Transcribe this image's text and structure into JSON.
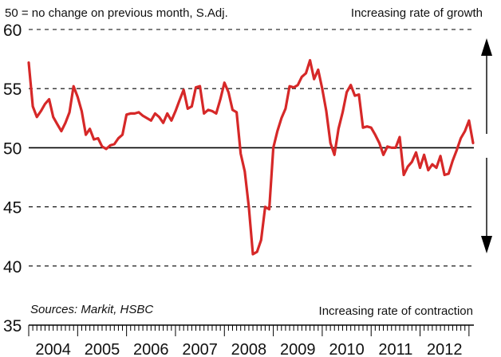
{
  "chart_data": {
    "type": "line",
    "note": "50 = no change on previous month, S.Adj.",
    "top_label": "Increasing rate of growth",
    "bottom_label": "Increasing rate of contraction",
    "sources": "Sources: Markit, HSBC",
    "ylim": [
      35,
      60
    ],
    "yticks": [
      "35",
      "40",
      "45",
      "50",
      "55",
      "60"
    ],
    "year_labels": [
      "2004",
      "2005",
      "2006",
      "2007",
      "2008",
      "2009",
      "2010",
      "2011",
      "2012"
    ],
    "reference_line": 50,
    "grid": "dashed horizontal",
    "colors": {
      "series": "#d62828",
      "axis": "#000000",
      "grid": "#000000"
    },
    "series": [
      {
        "x": [
          2004.0,
          2004.083,
          2004.167,
          2004.25,
          2004.333,
          2004.417,
          2004.5,
          2004.583,
          2004.667,
          2004.75,
          2004.833,
          2004.917,
          2005.0,
          2005.083,
          2005.167,
          2005.25,
          2005.333,
          2005.417,
          2005.5,
          2005.583,
          2005.667,
          2005.75,
          2005.833,
          2005.917,
          2006.0,
          2006.083,
          2006.167,
          2006.25,
          2006.333,
          2006.417,
          2006.5,
          2006.583,
          2006.667,
          2006.75,
          2006.833,
          2006.917,
          2007.0,
          2007.083,
          2007.167,
          2007.25,
          2007.333,
          2007.417,
          2007.5,
          2007.583,
          2007.667,
          2007.75,
          2007.833,
          2007.917,
          2008.0,
          2008.083,
          2008.167,
          2008.25,
          2008.333,
          2008.417,
          2008.5,
          2008.583,
          2008.667,
          2008.75,
          2008.833,
          2008.917,
          2009.0,
          2009.083,
          2009.167,
          2009.25,
          2009.333,
          2009.417,
          2009.5,
          2009.583,
          2009.667,
          2009.75,
          2009.833,
          2009.917,
          2010.0,
          2010.083,
          2010.167,
          2010.25,
          2010.333,
          2010.417,
          2010.5,
          2010.583,
          2010.667,
          2010.75,
          2010.833,
          2010.917,
          2011.0,
          2011.083,
          2011.167,
          2011.25,
          2011.333,
          2011.417,
          2011.5,
          2011.583,
          2011.667,
          2011.75,
          2011.833,
          2011.917,
          2012.0,
          2012.083,
          2012.167,
          2012.25,
          2012.333,
          2012.417,
          2012.5,
          2012.583,
          2012.667,
          2012.75,
          2012.833,
          2012.917,
          2013.0,
          2013.083
        ],
        "y": [
          57.2,
          53.5,
          52.6,
          53.1,
          53.7,
          54.1,
          52.6,
          52.0,
          51.4,
          52.1,
          53.0,
          55.2,
          54.3,
          53.1,
          51.1,
          51.6,
          50.7,
          50.8,
          50.1,
          49.9,
          50.2,
          50.3,
          50.8,
          51.1,
          52.8,
          52.9,
          52.9,
          53.0,
          52.7,
          52.5,
          52.3,
          52.9,
          52.6,
          52.1,
          52.9,
          52.3,
          53.1,
          54.0,
          54.9,
          53.3,
          53.5,
          55.1,
          55.2,
          52.9,
          53.2,
          53.1,
          52.9,
          54.1,
          55.5,
          54.7,
          53.2,
          53.0,
          49.5,
          48.0,
          45.0,
          41.0,
          41.2,
          42.2,
          45.0,
          44.8,
          50.0,
          51.4,
          52.5,
          53.3,
          55.2,
          55.1,
          55.3,
          56.0,
          56.3,
          57.4,
          55.8,
          56.6,
          55.0,
          53.1,
          50.4,
          49.4,
          51.6,
          53.0,
          54.7,
          55.3,
          54.4,
          54.5,
          51.7,
          51.8,
          51.7,
          51.1,
          50.4,
          49.4,
          50.1,
          50.0,
          50.0,
          50.9,
          47.7,
          48.4,
          48.8,
          49.6,
          48.3,
          49.4,
          48.1,
          48.6,
          48.3,
          49.3,
          47.7,
          47.8,
          48.9,
          49.8,
          50.8,
          51.4,
          52.3,
          50.4
        ]
      }
    ]
  }
}
